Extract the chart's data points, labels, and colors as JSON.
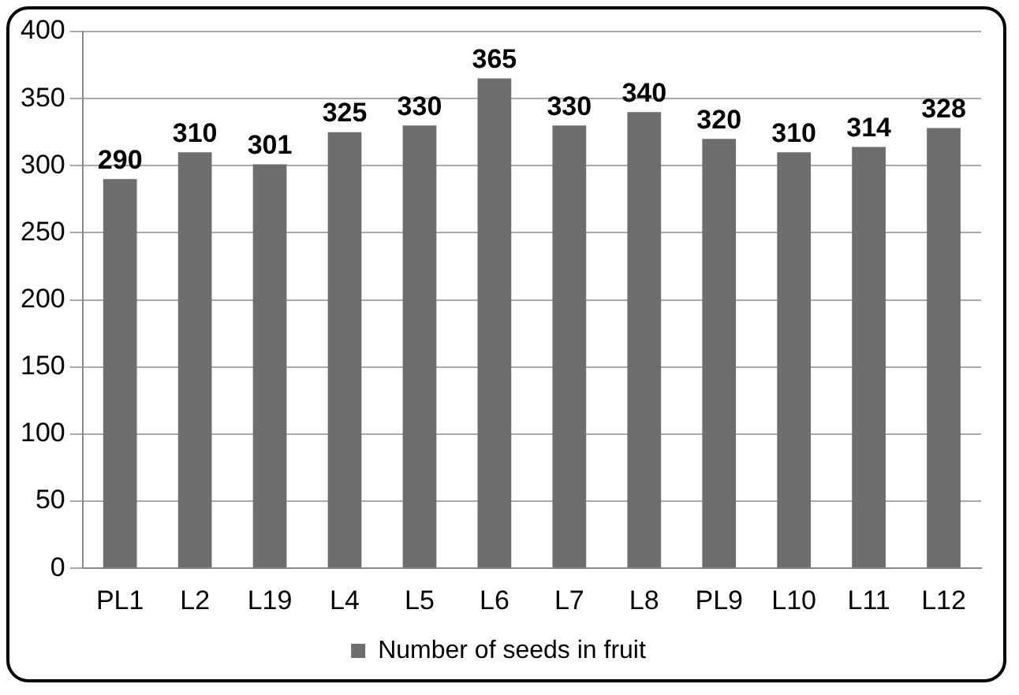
{
  "chart_data": {
    "type": "bar",
    "categories": [
      "PL1",
      "L2",
      "L19",
      "L4",
      "L5",
      "L6",
      "L7",
      "L8",
      "PL9",
      "L10",
      "L11",
      "L12"
    ],
    "series": [
      {
        "name": "Number of seeds in fruit",
        "color": "#6e6e6e",
        "values": [
          290,
          310,
          301,
          325,
          330,
          365,
          330,
          340,
          320,
          310,
          314,
          328
        ]
      }
    ],
    "ylim": [
      0,
      400
    ],
    "yticks": [
      0,
      50,
      100,
      150,
      200,
      250,
      300,
      350,
      400
    ],
    "grid": "y",
    "legend": "bottom",
    "data_labels": true
  }
}
